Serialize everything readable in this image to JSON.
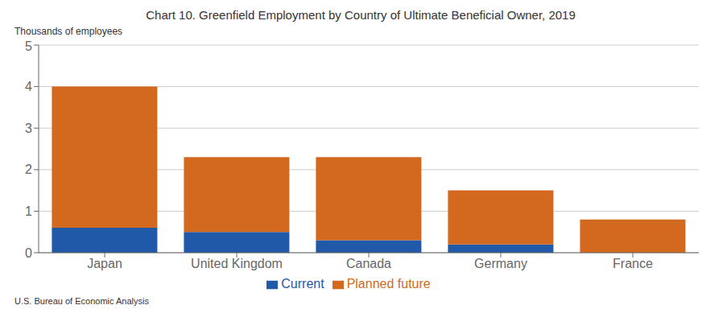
{
  "chart_data": {
    "type": "bar",
    "stacked": true,
    "title": "Chart 10. Greenfield Employment by Country of Ultimate Beneficial Owner, 2019",
    "ylabel": "Thousands of employees",
    "annotations": [
      "U.S. Bureau of Economic Analysis"
    ],
    "categories": [
      "Japan",
      "United Kingdom",
      "Canada",
      "Germany",
      "France"
    ],
    "series": [
      {
        "name": "Current",
        "color": "#2059A8",
        "values": [
          0.6,
          0.5,
          0.3,
          0.2,
          0.0
        ]
      },
      {
        "name": "Planned future",
        "color": "#D2691E",
        "values": [
          3.4,
          1.8,
          2.0,
          1.3,
          0.8
        ]
      }
    ],
    "ylim": [
      0,
      5
    ],
    "yticks": [
      0,
      1,
      2,
      3,
      4,
      5
    ],
    "grid": true,
    "legend": "bottom"
  }
}
